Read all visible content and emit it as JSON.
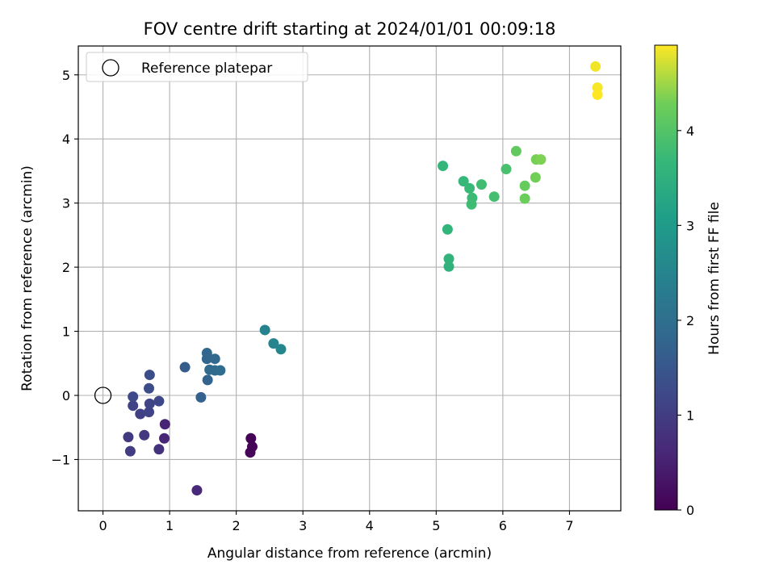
{
  "chart_data": {
    "type": "scatter",
    "title": "FOV centre drift starting at 2024/01/01 00:09:18",
    "xlabel": "Angular distance from reference (arcmin)",
    "ylabel": "Rotation from reference (arcmin)",
    "xlim": [
      -0.37,
      7.77
    ],
    "ylim": [
      -1.8,
      5.45
    ],
    "xticks": [
      0,
      1,
      2,
      3,
      4,
      5,
      6,
      7
    ],
    "yticks": [
      -1,
      0,
      1,
      2,
      3,
      4,
      5
    ],
    "xtick_labels": [
      "0",
      "1",
      "2",
      "3",
      "4",
      "5",
      "6",
      "7"
    ],
    "ytick_labels": [
      "−1",
      "0",
      "1",
      "2",
      "3",
      "4",
      "5"
    ],
    "grid": true,
    "legend": {
      "placement": "top-left",
      "entries": [
        {
          "label": "Reference platepar",
          "marker": "open-circle"
        }
      ]
    },
    "reference_point": {
      "x": 0,
      "y": 0
    },
    "colorbar": {
      "label": "Hours from first FF file",
      "colormap": "viridis",
      "range": [
        0,
        4.9
      ],
      "ticks": [
        0,
        1,
        2,
        3,
        4
      ],
      "tick_labels": [
        "0",
        "1",
        "2",
        "3",
        "4"
      ]
    },
    "points": [
      {
        "x": 2.22,
        "y": -0.67,
        "c": 0.03
      },
      {
        "x": 2.24,
        "y": -0.8,
        "c": 0.05
      },
      {
        "x": 2.21,
        "y": -0.89,
        "c": 0.08
      },
      {
        "x": 0.93,
        "y": -0.45,
        "c": 0.55
      },
      {
        "x": 0.92,
        "y": -0.67,
        "c": 0.6
      },
      {
        "x": 1.41,
        "y": -1.48,
        "c": 0.62
      },
      {
        "x": 0.84,
        "y": -0.84,
        "c": 0.8
      },
      {
        "x": 0.62,
        "y": -0.62,
        "c": 0.9
      },
      {
        "x": 0.38,
        "y": -0.65,
        "c": 0.95
      },
      {
        "x": 0.41,
        "y": -0.87,
        "c": 1.0
      },
      {
        "x": 0.56,
        "y": -0.29,
        "c": 1.05
      },
      {
        "x": 0.45,
        "y": -0.16,
        "c": 1.1
      },
      {
        "x": 0.69,
        "y": -0.26,
        "c": 1.12
      },
      {
        "x": 0.7,
        "y": -0.13,
        "c": 1.15
      },
      {
        "x": 0.84,
        "y": -0.09,
        "c": 1.2
      },
      {
        "x": 0.45,
        "y": -0.02,
        "c": 1.22
      },
      {
        "x": 0.69,
        "y": 0.11,
        "c": 1.3
      },
      {
        "x": 0.7,
        "y": 0.32,
        "c": 1.32
      },
      {
        "x": 1.23,
        "y": 0.44,
        "c": 1.6
      },
      {
        "x": 1.47,
        "y": -0.03,
        "c": 1.7
      },
      {
        "x": 1.57,
        "y": 0.24,
        "c": 1.75
      },
      {
        "x": 1.56,
        "y": 0.57,
        "c": 1.8
      },
      {
        "x": 1.56,
        "y": 0.66,
        "c": 1.82
      },
      {
        "x": 1.68,
        "y": 0.57,
        "c": 1.85
      },
      {
        "x": 1.6,
        "y": 0.4,
        "c": 1.88
      },
      {
        "x": 1.68,
        "y": 0.39,
        "c": 1.9
      },
      {
        "x": 1.76,
        "y": 0.39,
        "c": 1.92
      },
      {
        "x": 2.43,
        "y": 1.02,
        "c": 2.45
      },
      {
        "x": 2.56,
        "y": 0.81,
        "c": 2.5
      },
      {
        "x": 2.67,
        "y": 0.72,
        "c": 2.55
      },
      {
        "x": 5.19,
        "y": 2.01,
        "c": 3.55
      },
      {
        "x": 5.19,
        "y": 2.13,
        "c": 3.58
      },
      {
        "x": 5.17,
        "y": 2.59,
        "c": 3.6
      },
      {
        "x": 5.1,
        "y": 3.58,
        "c": 3.65
      },
      {
        "x": 5.41,
        "y": 3.34,
        "c": 3.7
      },
      {
        "x": 5.5,
        "y": 3.23,
        "c": 3.72
      },
      {
        "x": 5.54,
        "y": 3.08,
        "c": 3.75
      },
      {
        "x": 5.53,
        "y": 2.98,
        "c": 3.78
      },
      {
        "x": 5.68,
        "y": 3.29,
        "c": 3.8
      },
      {
        "x": 5.87,
        "y": 3.1,
        "c": 3.85
      },
      {
        "x": 6.05,
        "y": 3.53,
        "c": 3.9
      },
      {
        "x": 6.2,
        "y": 3.81,
        "c": 4.15
      },
      {
        "x": 6.33,
        "y": 3.27,
        "c": 4.2
      },
      {
        "x": 6.33,
        "y": 3.07,
        "c": 4.25
      },
      {
        "x": 6.49,
        "y": 3.4,
        "c": 4.3
      },
      {
        "x": 6.5,
        "y": 3.68,
        "c": 4.32
      },
      {
        "x": 6.57,
        "y": 3.68,
        "c": 4.35
      },
      {
        "x": 7.39,
        "y": 5.13,
        "c": 4.85
      },
      {
        "x": 7.42,
        "y": 4.8,
        "c": 4.87
      },
      {
        "x": 7.42,
        "y": 4.69,
        "c": 4.9
      }
    ]
  }
}
